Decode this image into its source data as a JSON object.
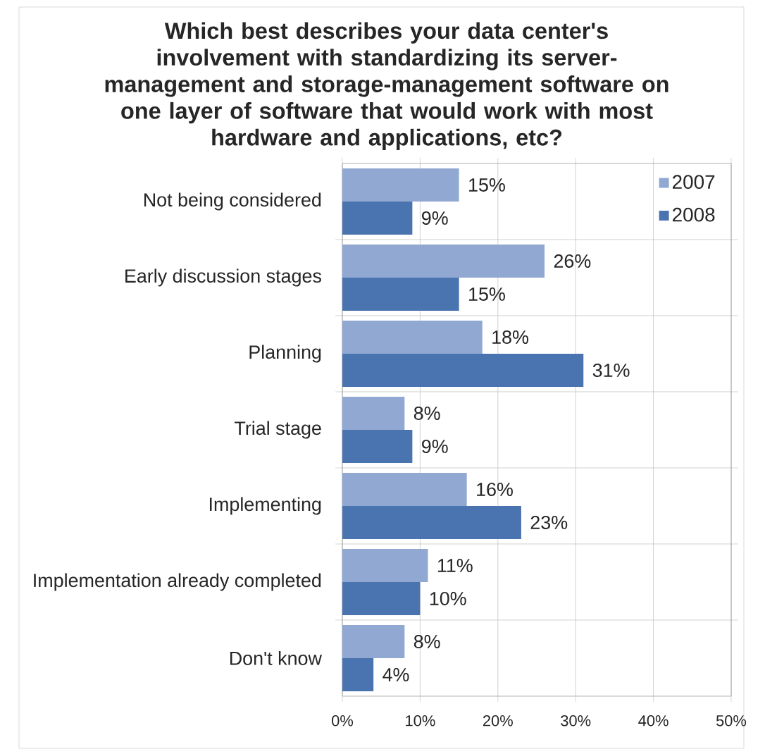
{
  "chart_data": {
    "type": "bar",
    "orientation": "horizontal",
    "title": "Which best describes your data center's involvement with standardizing its server-management and storage-management software on one layer of software that would work with most hardware and applications, etc?",
    "categories": [
      "Not being considered",
      "Early discussion stages",
      "Planning",
      "Trial stage",
      "Implementing",
      "Implementation already completed",
      "Don't know"
    ],
    "series": [
      {
        "name": "2007",
        "color": "#91a8d3",
        "values": [
          15,
          26,
          18,
          8,
          16,
          11,
          8
        ],
        "value_labels": [
          "15%",
          "26%",
          "18%",
          "8%",
          "16%",
          "11%",
          "8%"
        ]
      },
      {
        "name": "2008",
        "color": "#4a74af",
        "values": [
          9,
          15,
          31,
          9,
          23,
          10,
          4
        ],
        "value_labels": [
          "9%",
          "15%",
          "31%",
          "9%",
          "23%",
          "10%",
          "4%"
        ]
      }
    ],
    "xlim": [
      0,
      50
    ],
    "xticks": [
      {
        "value": 0,
        "label": "0%"
      },
      {
        "value": 10,
        "label": "10%"
      },
      {
        "value": 20,
        "label": "20%"
      },
      {
        "value": 30,
        "label": "30%"
      },
      {
        "value": 40,
        "label": "40%"
      },
      {
        "value": 50,
        "label": "50%"
      }
    ],
    "grid": true,
    "legend": "top right"
  }
}
